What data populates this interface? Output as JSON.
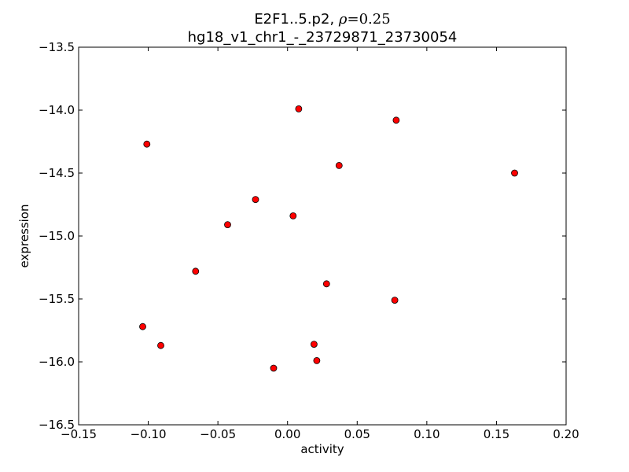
{
  "chart_data": {
    "type": "scatter",
    "title_prefix": "E2F1..5.p2,",
    "title_rho_symbol": "ρ",
    "title_rho_value": "=0.25",
    "subtitle": "hg18_v1_chr1_-_23729871_23730054",
    "xlabel": "activity",
    "ylabel": "expression",
    "xlim": [
      -0.15,
      0.2
    ],
    "ylim": [
      -16.5,
      -13.5
    ],
    "xticks": [
      {
        "value": -0.15,
        "label": "−0.15"
      },
      {
        "value": -0.1,
        "label": "−0.10"
      },
      {
        "value": -0.05,
        "label": "−0.05"
      },
      {
        "value": 0.0,
        "label": "0.00"
      },
      {
        "value": 0.05,
        "label": "0.05"
      },
      {
        "value": 0.1,
        "label": "0.10"
      },
      {
        "value": 0.15,
        "label": "0.15"
      },
      {
        "value": 0.2,
        "label": "0.20"
      }
    ],
    "yticks": [
      {
        "value": -13.5,
        "label": "−13.5"
      },
      {
        "value": -14.0,
        "label": "−14.0"
      },
      {
        "value": -14.5,
        "label": "−14.5"
      },
      {
        "value": -15.0,
        "label": "−15.0"
      },
      {
        "value": -15.5,
        "label": "−15.5"
      },
      {
        "value": -16.0,
        "label": "−16.0"
      },
      {
        "value": -16.5,
        "label": "−16.5"
      }
    ],
    "grid": false,
    "marker_color": "#ff0000",
    "marker_edge_color": "#000000",
    "points": [
      {
        "x": 0.008,
        "y": -13.99
      },
      {
        "x": 0.078,
        "y": -14.08
      },
      {
        "x": -0.101,
        "y": -14.27
      },
      {
        "x": 0.037,
        "y": -14.44
      },
      {
        "x": 0.163,
        "y": -14.5
      },
      {
        "x": -0.023,
        "y": -14.71
      },
      {
        "x": 0.004,
        "y": -14.84
      },
      {
        "x": -0.043,
        "y": -14.91
      },
      {
        "x": -0.066,
        "y": -15.28
      },
      {
        "x": 0.028,
        "y": -15.38
      },
      {
        "x": 0.077,
        "y": -15.51
      },
      {
        "x": -0.104,
        "y": -15.72
      },
      {
        "x": -0.091,
        "y": -15.87
      },
      {
        "x": 0.019,
        "y": -15.86
      },
      {
        "x": 0.021,
        "y": -15.99
      },
      {
        "x": -0.01,
        "y": -16.05
      }
    ]
  }
}
